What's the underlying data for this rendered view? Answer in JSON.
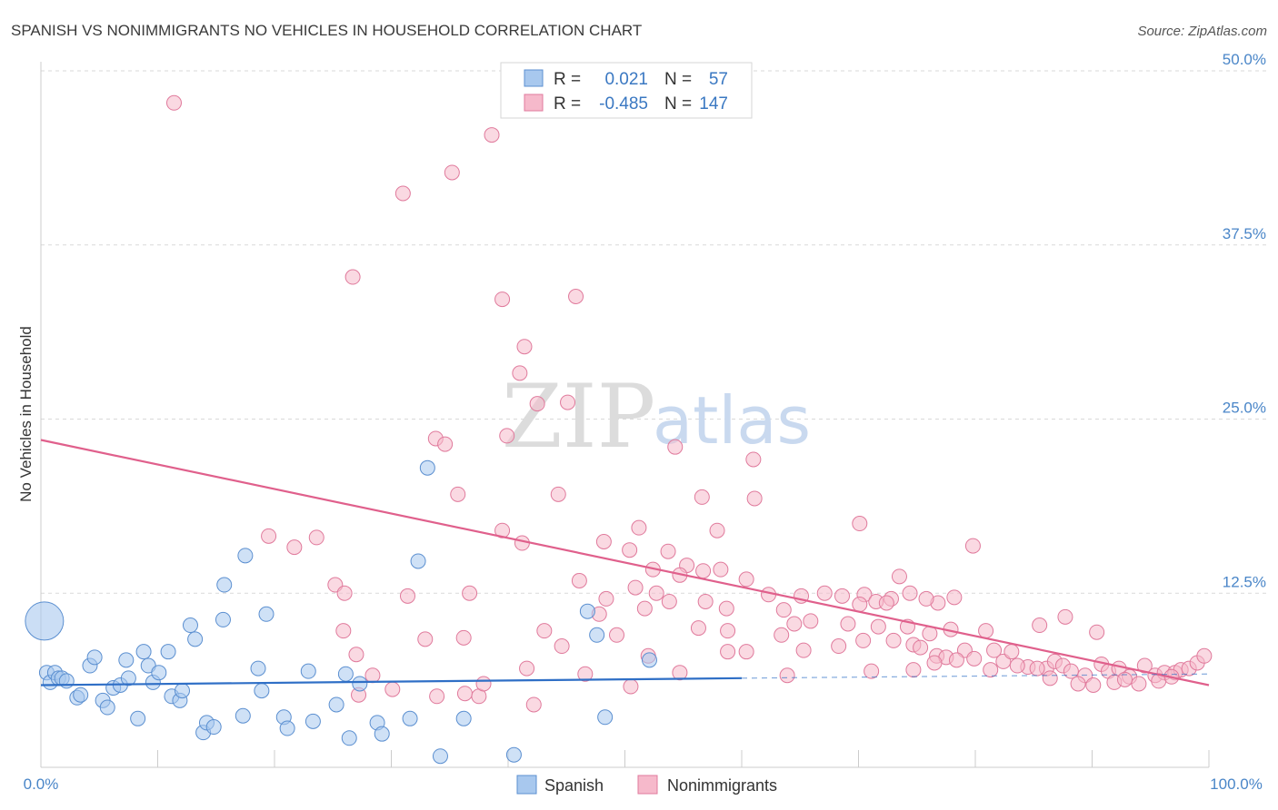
{
  "header": {
    "title": "SPANISH VS NONIMMIGRANTS NO VEHICLES IN HOUSEHOLD CORRELATION CHART",
    "source": "Source: ZipAtlas.com"
  },
  "watermark": {
    "zip": "ZIP",
    "atlas": "atlas"
  },
  "colors": {
    "spanish_fill": "#a8c8ee",
    "spanish_stroke": "#5b8fd0",
    "spanish_line": "#2f6fc6",
    "nonimm_fill": "#f6b9cb",
    "nonimm_stroke": "#e07a9c",
    "nonimm_line": "#e0608c",
    "grid": "#d9d9d9",
    "axis_text": "#4a86c8"
  },
  "legend": {
    "rows": [
      {
        "r_label": "R =",
        "r_value": "0.021",
        "n_label": "N =",
        "n_value": "57"
      },
      {
        "r_label": "R =",
        "r_value": "-0.485",
        "n_label": "N =",
        "n_value": "147"
      }
    ]
  },
  "bottom_legend": {
    "items": [
      "Spanish",
      "Nonimmigrants"
    ]
  },
  "chart_data": {
    "type": "scatter",
    "title": "SPANISH VS NONIMMIGRANTS NO VEHICLES IN HOUSEHOLD CORRELATION CHART",
    "ylabel": "No Vehicles in Household",
    "xlabel": "",
    "xlim": [
      0,
      100
    ],
    "ylim": [
      0,
      50
    ],
    "x_tick_labels": [
      "0.0%",
      "100.0%"
    ],
    "y_ticks": [
      12.5,
      25.0,
      37.5,
      50.0
    ],
    "y_tick_labels": [
      "12.5%",
      "25.0%",
      "37.5%",
      "50.0%"
    ],
    "grid": true,
    "legend_position": "top-center",
    "series": [
      {
        "name": "Spanish",
        "R": 0.021,
        "N": 57,
        "trend": {
          "x": [
            0,
            60
          ],
          "y": [
            5.9,
            6.4
          ],
          "dashed_to": 100,
          "dashed_y": 6.7
        },
        "points": [
          [
            0.5,
            6.8
          ],
          [
            0.8,
            6.1
          ],
          [
            1.2,
            6.8
          ],
          [
            1.5,
            6.4
          ],
          [
            1.8,
            6.4
          ],
          [
            2.2,
            6.2
          ],
          [
            3.1,
            5.0
          ],
          [
            3.4,
            5.2
          ],
          [
            4.2,
            7.3
          ],
          [
            4.6,
            7.9
          ],
          [
            5.3,
            4.8
          ],
          [
            5.7,
            4.3
          ],
          [
            6.2,
            5.7
          ],
          [
            6.8,
            5.9
          ],
          [
            7.3,
            7.7
          ],
          [
            7.5,
            6.4
          ],
          [
            8.3,
            3.5
          ],
          [
            8.8,
            8.3
          ],
          [
            9.2,
            7.3
          ],
          [
            9.6,
            6.1
          ],
          [
            10.1,
            6.8
          ],
          [
            10.9,
            8.3
          ],
          [
            11.2,
            5.1
          ],
          [
            11.9,
            4.8
          ],
          [
            12.1,
            5.5
          ],
          [
            12.8,
            10.2
          ],
          [
            13.2,
            9.2
          ],
          [
            13.9,
            2.5
          ],
          [
            14.2,
            3.2
          ],
          [
            14.8,
            2.9
          ],
          [
            15.6,
            10.6
          ],
          [
            15.7,
            13.1
          ],
          [
            17.3,
            3.7
          ],
          [
            17.5,
            15.2
          ],
          [
            18.6,
            7.1
          ],
          [
            18.9,
            5.5
          ],
          [
            19.3,
            11.0
          ],
          [
            20.8,
            3.6
          ],
          [
            21.1,
            2.8
          ],
          [
            22.9,
            6.9
          ],
          [
            23.3,
            3.3
          ],
          [
            25.3,
            4.5
          ],
          [
            26.1,
            6.7
          ],
          [
            26.4,
            2.1
          ],
          [
            27.3,
            6.0
          ],
          [
            28.8,
            3.2
          ],
          [
            29.2,
            2.4
          ],
          [
            31.6,
            3.5
          ],
          [
            32.3,
            14.8
          ],
          [
            33.1,
            21.5
          ],
          [
            34.2,
            0.8
          ],
          [
            36.2,
            3.5
          ],
          [
            40.5,
            0.9
          ],
          [
            46.8,
            11.2
          ],
          [
            47.6,
            9.5
          ],
          [
            48.3,
            3.6
          ],
          [
            52.1,
            7.7
          ]
        ],
        "large_point": [
          0.3,
          10.5
        ]
      },
      {
        "name": "Nonimmigrants",
        "R": -0.485,
        "N": 147,
        "trend": {
          "x": [
            0,
            100
          ],
          "y": [
            23.5,
            5.9
          ]
        },
        "points": [
          [
            11.4,
            47.7
          ],
          [
            26.7,
            35.2
          ],
          [
            31.0,
            41.2
          ],
          [
            35.2,
            42.7
          ],
          [
            38.6,
            45.4
          ],
          [
            39.5,
            33.6
          ],
          [
            41.4,
            30.2
          ],
          [
            45.8,
            33.8
          ],
          [
            41.0,
            28.3
          ],
          [
            39.9,
            23.8
          ],
          [
            42.5,
            26.1
          ],
          [
            45.1,
            26.2
          ],
          [
            33.8,
            23.6
          ],
          [
            34.6,
            23.2
          ],
          [
            54.3,
            23.0
          ],
          [
            61.0,
            22.1
          ],
          [
            35.7,
            19.6
          ],
          [
            44.3,
            19.6
          ],
          [
            56.6,
            19.4
          ],
          [
            61.1,
            19.3
          ],
          [
            70.1,
            17.5
          ],
          [
            39.5,
            17.0
          ],
          [
            51.2,
            17.2
          ],
          [
            57.9,
            17.0
          ],
          [
            19.5,
            16.6
          ],
          [
            23.6,
            16.5
          ],
          [
            21.7,
            15.8
          ],
          [
            41.2,
            16.1
          ],
          [
            48.2,
            16.2
          ],
          [
            50.4,
            15.6
          ],
          [
            53.7,
            15.5
          ],
          [
            52.4,
            14.2
          ],
          [
            55.3,
            14.5
          ],
          [
            56.7,
            14.1
          ],
          [
            58.2,
            14.2
          ],
          [
            60.4,
            13.5
          ],
          [
            73.5,
            13.7
          ],
          [
            79.8,
            15.9
          ],
          [
            46.1,
            13.4
          ],
          [
            50.9,
            12.9
          ],
          [
            54.7,
            13.8
          ],
          [
            25.2,
            13.1
          ],
          [
            26.0,
            12.5
          ],
          [
            31.4,
            12.3
          ],
          [
            36.7,
            12.5
          ],
          [
            48.4,
            12.1
          ],
          [
            52.7,
            12.5
          ],
          [
            56.9,
            11.9
          ],
          [
            62.3,
            12.4
          ],
          [
            67.1,
            12.5
          ],
          [
            68.6,
            12.3
          ],
          [
            70.5,
            12.4
          ],
          [
            71.5,
            11.9
          ],
          [
            72.8,
            12.1
          ],
          [
            74.4,
            12.5
          ],
          [
            76.8,
            11.8
          ],
          [
            78.2,
            12.2
          ],
          [
            75.8,
            12.1
          ],
          [
            53.8,
            11.9
          ],
          [
            58.7,
            11.4
          ],
          [
            63.6,
            11.3
          ],
          [
            65.1,
            12.3
          ],
          [
            70.1,
            11.7
          ],
          [
            72.4,
            11.8
          ],
          [
            47.8,
            11.0
          ],
          [
            51.7,
            11.4
          ],
          [
            43.1,
            9.8
          ],
          [
            49.3,
            9.5
          ],
          [
            56.3,
            10.0
          ],
          [
            58.8,
            9.8
          ],
          [
            63.4,
            9.5
          ],
          [
            64.5,
            10.3
          ],
          [
            65.9,
            10.5
          ],
          [
            69.1,
            10.3
          ],
          [
            71.7,
            10.1
          ],
          [
            74.2,
            10.1
          ],
          [
            76.1,
            9.6
          ],
          [
            77.9,
            9.9
          ],
          [
            80.9,
            9.8
          ],
          [
            85.5,
            10.2
          ],
          [
            87.7,
            10.8
          ],
          [
            90.4,
            9.7
          ],
          [
            25.9,
            9.8
          ],
          [
            32.9,
            9.2
          ],
          [
            36.2,
            9.3
          ],
          [
            44.6,
            8.7
          ],
          [
            58.8,
            8.3
          ],
          [
            60.4,
            8.3
          ],
          [
            65.3,
            8.4
          ],
          [
            68.3,
            8.7
          ],
          [
            70.4,
            9.1
          ],
          [
            73.0,
            9.1
          ],
          [
            74.7,
            8.8
          ],
          [
            75.3,
            8.6
          ],
          [
            76.7,
            8.0
          ],
          [
            77.5,
            7.9
          ],
          [
            79.1,
            8.4
          ],
          [
            79.9,
            7.8
          ],
          [
            81.6,
            8.4
          ],
          [
            82.4,
            7.6
          ],
          [
            83.1,
            8.3
          ],
          [
            84.5,
            7.2
          ],
          [
            86.1,
            7.1
          ],
          [
            86.8,
            7.6
          ],
          [
            87.5,
            7.3
          ],
          [
            88.2,
            6.9
          ],
          [
            89.4,
            6.6
          ],
          [
            90.8,
            7.4
          ],
          [
            91.4,
            6.9
          ],
          [
            92.3,
            7.1
          ],
          [
            93.2,
            6.5
          ],
          [
            94.5,
            7.3
          ],
          [
            95.4,
            6.6
          ],
          [
            96.2,
            6.8
          ],
          [
            97.1,
            6.8
          ],
          [
            97.6,
            7.0
          ],
          [
            98.3,
            7.1
          ],
          [
            99.0,
            7.5
          ],
          [
            99.6,
            8.0
          ],
          [
            27.0,
            8.1
          ],
          [
            52.0,
            8.0
          ],
          [
            54.7,
            6.8
          ],
          [
            63.9,
            6.6
          ],
          [
            71.1,
            6.9
          ],
          [
            74.7,
            7.0
          ],
          [
            76.5,
            7.5
          ],
          [
            78.4,
            7.7
          ],
          [
            81.3,
            7.0
          ],
          [
            83.6,
            7.3
          ],
          [
            85.3,
            7.1
          ],
          [
            86.4,
            6.4
          ],
          [
            88.8,
            6.0
          ],
          [
            90.1,
            5.9
          ],
          [
            91.9,
            6.1
          ],
          [
            92.8,
            6.3
          ],
          [
            94.0,
            6.0
          ],
          [
            95.7,
            6.2
          ],
          [
            96.8,
            6.5
          ],
          [
            28.4,
            6.6
          ],
          [
            30.1,
            5.6
          ],
          [
            27.2,
            5.2
          ],
          [
            33.9,
            5.1
          ],
          [
            36.3,
            5.3
          ],
          [
            37.5,
            5.1
          ],
          [
            42.2,
            4.5
          ],
          [
            46.6,
            6.7
          ],
          [
            50.5,
            5.8
          ],
          [
            41.6,
            7.1
          ],
          [
            37.9,
            6.0
          ]
        ]
      }
    ]
  }
}
